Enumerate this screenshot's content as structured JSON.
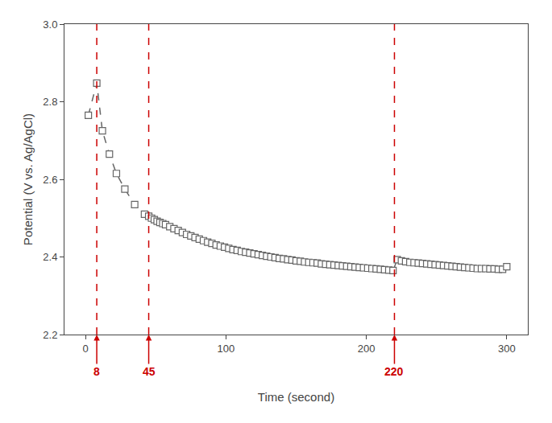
{
  "chart_data": {
    "type": "line",
    "xlabel": "Time (second)",
    "ylabel": "Potential (V vs. Ag/AgCl)",
    "xlim": [
      -15,
      315
    ],
    "ylim": [
      2.2,
      3.0
    ],
    "xticks": [
      0,
      100,
      200,
      300
    ],
    "yticks": [
      2.2,
      2.4,
      2.6,
      2.8,
      {
        "value": 3.0,
        "label": "3.0"
      }
    ],
    "grid": false,
    "series": [
      {
        "color": "#666666",
        "marker": "square",
        "line_style": "dashed",
        "x": [
          2,
          8,
          12,
          17,
          22,
          28,
          35,
          42,
          45,
          47,
          49,
          51,
          53,
          55,
          57,
          60,
          63,
          66,
          69,
          72,
          75,
          78,
          81,
          84,
          87,
          90,
          93,
          96,
          99,
          102,
          105,
          108,
          111,
          114,
          117,
          120,
          123,
          126,
          129,
          132,
          135,
          138,
          141,
          144,
          147,
          150,
          153,
          156,
          159,
          162,
          165,
          168,
          171,
          174,
          177,
          180,
          183,
          186,
          189,
          192,
          195,
          198,
          201,
          204,
          207,
          210,
          213,
          216,
          219,
          222,
          225,
          228,
          231,
          234,
          237,
          240,
          243,
          246,
          249,
          252,
          255,
          258,
          261,
          264,
          267,
          270,
          273,
          276,
          279,
          282,
          285,
          288,
          291,
          294,
          297,
          300
        ],
        "values": [
          2.765,
          2.848,
          2.725,
          2.665,
          2.615,
          2.575,
          2.535,
          2.51,
          2.505,
          2.5,
          2.496,
          2.492,
          2.489,
          2.486,
          2.483,
          2.478,
          2.473,
          2.468,
          2.463,
          2.458,
          2.454,
          2.45,
          2.446,
          2.442,
          2.438,
          2.435,
          2.431,
          2.428,
          2.425,
          2.422,
          2.419,
          2.417,
          2.414,
          2.412,
          2.41,
          2.408,
          2.406,
          2.404,
          2.402,
          2.4,
          2.398,
          2.396,
          2.395,
          2.393,
          2.392,
          2.39,
          2.389,
          2.387,
          2.386,
          2.385,
          2.384,
          2.382,
          2.381,
          2.38,
          2.379,
          2.378,
          2.377,
          2.376,
          2.375,
          2.374,
          2.373,
          2.372,
          2.371,
          2.37,
          2.369,
          2.368,
          2.367,
          2.366,
          2.365,
          2.393,
          2.39,
          2.388,
          2.386,
          2.385,
          2.384,
          2.383,
          2.382,
          2.381,
          2.38,
          2.379,
          2.378,
          2.377,
          2.376,
          2.375,
          2.374,
          2.373,
          2.372,
          2.371,
          2.37,
          2.37,
          2.37,
          2.369,
          2.369,
          2.368,
          2.368,
          2.375
        ]
      }
    ],
    "annotations": [
      {
        "text": "8",
        "x": 8,
        "color": "#cc0000"
      },
      {
        "text": "45",
        "x": 45,
        "color": "#cc0000"
      },
      {
        "text": "220",
        "x": 220,
        "color": "#cc0000"
      }
    ]
  }
}
